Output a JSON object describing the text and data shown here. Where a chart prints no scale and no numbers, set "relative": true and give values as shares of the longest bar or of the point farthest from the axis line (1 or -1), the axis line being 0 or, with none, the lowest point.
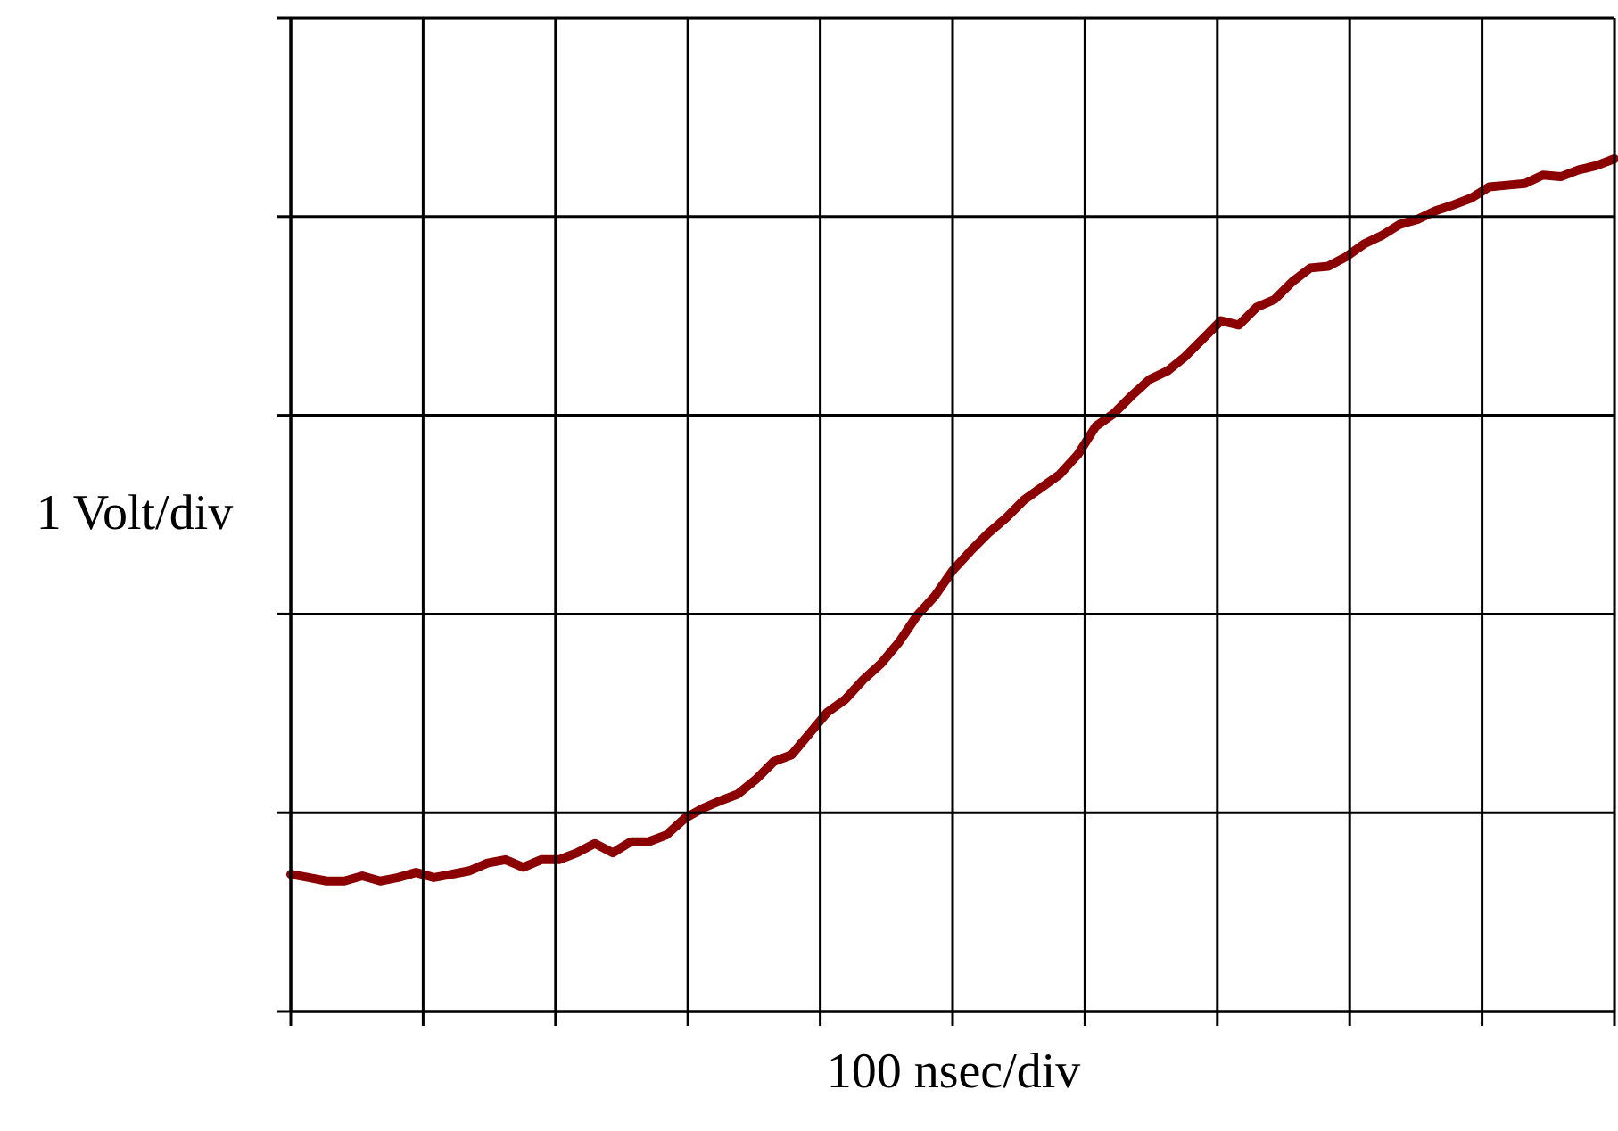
{
  "chart_data": {
    "type": "line",
    "xlabel": "100 nsec/div",
    "ylabel": "1 Volt/div",
    "relative": true,
    "categories": [
      null,
      null,
      null,
      null,
      null,
      null,
      null,
      null,
      null,
      null,
      null,
      null,
      null,
      null,
      null,
      null,
      null,
      null,
      null,
      null,
      null,
      null,
      null,
      null,
      null,
      null,
      null,
      null,
      null,
      null,
      null,
      null,
      null,
      null,
      null,
      null,
      null,
      null,
      null,
      null,
      null,
      null,
      null,
      null,
      null,
      null,
      null,
      null,
      null,
      null,
      null,
      null,
      null,
      null,
      null,
      null,
      null,
      null,
      null,
      null,
      null,
      null,
      null,
      null,
      null,
      null,
      null,
      null,
      null,
      null,
      null,
      null,
      null,
      null,
      null
    ],
    "series": [
      {
        "color": "#8b0000",
        "values": [
          0.161,
          0.157,
          0.153,
          0.153,
          0.159,
          0.153,
          0.157,
          0.163,
          0.157,
          0.161,
          0.165,
          0.174,
          0.178,
          0.169,
          0.178,
          0.178,
          0.186,
          0.197,
          0.186,
          0.199,
          0.199,
          0.207,
          0.226,
          0.238,
          0.247,
          0.255,
          0.272,
          0.293,
          0.301,
          0.326,
          0.351,
          0.366,
          0.389,
          0.408,
          0.433,
          0.464,
          0.487,
          0.517,
          0.54,
          0.561,
          0.579,
          0.6,
          0.615,
          0.63,
          0.653,
          0.686,
          0.701,
          0.722,
          0.741,
          0.751,
          0.768,
          0.789,
          0.81,
          0.805,
          0.826,
          0.835,
          0.856,
          0.872,
          0.874,
          0.885,
          0.9,
          0.91,
          0.923,
          0.929,
          0.939,
          0.946,
          0.954,
          0.967,
          0.969,
          0.971,
          0.981,
          0.979,
          0.987,
          0.992,
          1
        ]
      }
    ],
    "grid": true,
    "marker": "none",
    "line_style": "solid",
    "tick_labels": false
  }
}
